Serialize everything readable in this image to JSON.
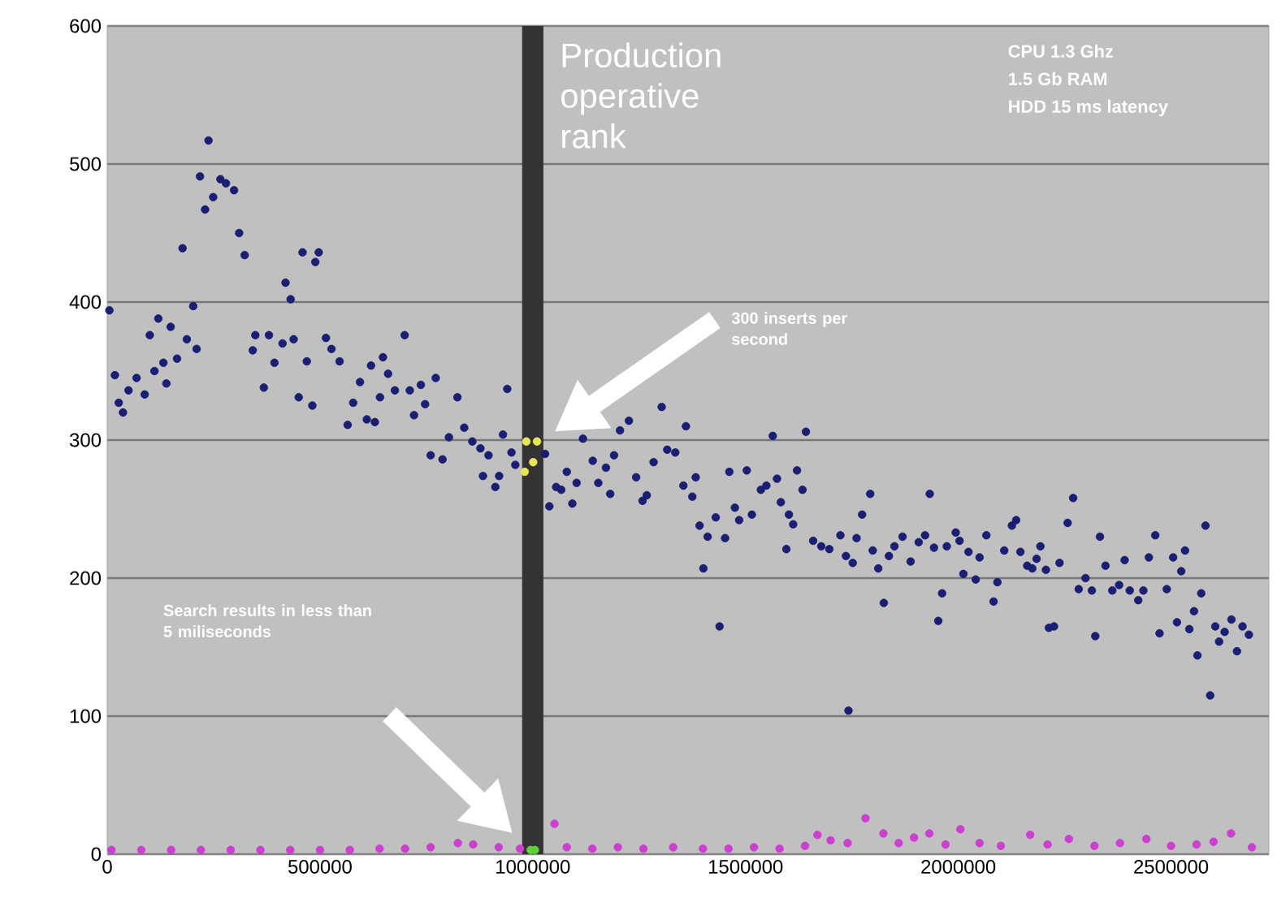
{
  "chart_data": {
    "type": "scatter",
    "marker": "circle",
    "grid": "y",
    "xlim": [
      0,
      2730000
    ],
    "ylim": [
      0,
      600
    ],
    "xticks": [
      0,
      500000,
      1000000,
      1500000,
      2000000,
      2500000
    ],
    "yticks": [
      0,
      100,
      200,
      300,
      400,
      500,
      600
    ],
    "bands": [
      {
        "axis": "x",
        "from": 975000,
        "to": 1025000,
        "label": "Production operative rank",
        "color": "#333333"
      }
    ],
    "annotations": [
      "CPU 1.3 Ghz",
      "1.5 Gb RAM",
      "HDD 15 ms latency",
      "300 inserts per second",
      "Search results in less than 5 miliseconds"
    ],
    "series": [
      {
        "color": "#1b1f73",
        "x": [
          5000,
          18000,
          27000,
          37000,
          50000,
          69000,
          88000,
          100000,
          111000,
          120000,
          132000,
          139000,
          149000,
          164000,
          177000,
          187000,
          202000,
          210000,
          218000,
          230000,
          238000,
          249000,
          266000,
          279000,
          298000,
          310000,
          323000,
          348000,
          342000,
          368000,
          380000,
          393000,
          412000,
          419000,
          431000,
          438000,
          450000,
          459000,
          469000,
          482000,
          489000,
          497000,
          514000,
          527000,
          546000,
          565000,
          578000,
          594000,
          610000,
          620000,
          629000,
          641000,
          648000,
          660000,
          676000,
          699000,
          711000,
          721000,
          737000,
          747000,
          772000,
          760000,
          788000,
          803000,
          823000,
          839000,
          858000,
          877000,
          883000,
          896000,
          912000,
          921000,
          930000,
          940000,
          950000,
          959000,
          1029000,
          1039000,
          1055000,
          1067000,
          1080000,
          1093000,
          1103000,
          1118000,
          1141000,
          1154000,
          1172000,
          1182000,
          1191000,
          1205000,
          1226000,
          1243000,
          1258000,
          1268000,
          1284000,
          1303000,
          1316000,
          1335000,
          1354000,
          1360000,
          1375000,
          1383000,
          1392000,
          1411000,
          1401000,
          1430000,
          1439000,
          1452000,
          1462000,
          1475000,
          1485000,
          1503000,
          1515000,
          1536000,
          1549000,
          1564000,
          1574000,
          1583000,
          1596000,
          1602000,
          1612000,
          1621000,
          1634000,
          1642000,
          1659000,
          1678000,
          1697000,
          1723000,
          1736000,
          1742000,
          1761000,
          1774000,
          1793000,
          1799000,
          1812000,
          1825000,
          1752000,
          1837000,
          1850000,
          1869000,
          1888000,
          1907000,
          1922000,
          1933000,
          1943000,
          1953000,
          1962000,
          1973000,
          1994000,
          2003000,
          2012000,
          2024000,
          2041000,
          2050000,
          2066000,
          2083000,
          2092000,
          2108000,
          2126000,
          2136000,
          2146000,
          2162000,
          2174000,
          2184000,
          2193000,
          2206000,
          2213000,
          2225000,
          2238000,
          2257000,
          2270000,
          2283000,
          2299000,
          2314000,
          2322000,
          2333000,
          2346000,
          2362000,
          2378000,
          2391000,
          2403000,
          2423000,
          2435000,
          2448000,
          2463000,
          2473000,
          2490000,
          2505000,
          2514000,
          2524000,
          2533000,
          2543000,
          2554000,
          2562000,
          2571000,
          2581000,
          2592000,
          2604000,
          2613000,
          2626000,
          2642000,
          2655000,
          2668000,
          2683000
        ],
        "values": [
          394,
          347,
          327,
          320,
          336,
          345,
          333,
          376,
          350,
          388,
          356,
          341,
          382,
          359,
          439,
          373,
          397,
          366,
          491,
          467,
          517,
          476,
          489,
          486,
          481,
          450,
          434,
          376,
          365,
          338,
          376,
          356,
          370,
          414,
          402,
          373,
          331,
          436,
          357,
          325,
          429,
          436,
          374,
          366,
          357,
          311,
          327,
          342,
          315,
          354,
          313,
          331,
          360,
          348,
          336,
          376,
          336,
          318,
          340,
          326,
          345,
          289,
          286,
          302,
          331,
          309,
          299,
          294,
          274,
          289,
          266,
          274,
          304,
          337,
          291,
          282,
          290,
          252,
          266,
          264,
          277,
          254,
          269,
          301,
          285,
          269,
          280,
          261,
          289,
          307,
          314,
          273,
          256,
          260,
          284,
          324,
          293,
          291,
          267,
          310,
          259,
          273,
          238,
          230,
          207,
          244,
          165,
          229,
          277,
          251,
          242,
          278,
          246,
          264,
          267,
          303,
          272,
          255,
          221,
          246,
          239,
          278,
          264,
          306,
          227,
          223,
          221,
          231,
          216,
          104,
          229,
          246,
          261,
          220,
          207,
          182,
          211,
          216,
          223,
          230,
          212,
          226,
          231,
          261,
          222,
          169,
          189,
          223,
          233,
          227,
          203,
          219,
          199,
          215,
          231,
          183,
          197,
          220,
          238,
          242,
          219,
          209,
          207,
          214,
          223,
          206,
          164,
          165,
          211,
          240,
          258,
          192,
          200,
          191,
          158,
          230,
          209,
          191,
          195,
          213,
          191,
          184,
          191,
          215,
          231,
          160,
          192,
          215,
          168,
          205,
          220,
          163,
          176,
          144,
          189,
          238,
          115,
          165,
          154,
          161,
          170,
          147,
          165,
          159
        ]
      },
      {
        "color": "#e6e65a",
        "x": [
          985000,
          1010000,
          1001000,
          981000
        ],
        "values": [
          299,
          299,
          284,
          277
        ]
      },
      {
        "color": "#cc3fd0",
        "x": [
          10000,
          80000,
          150000,
          220000,
          290000,
          360000,
          430000,
          500000,
          570000,
          640000,
          700000,
          760000,
          824000,
          860000,
          920000,
          970000,
          1051000,
          1080000,
          1140000,
          1200000,
          1260000,
          1330000,
          1400000,
          1460000,
          1520000,
          1580000,
          1640000,
          1669000,
          1700000,
          1740000,
          1782000,
          1824000,
          1860000,
          1896000,
          1932000,
          1970000,
          2005000,
          2050000,
          2100000,
          2169000,
          2210000,
          2260000,
          2320000,
          2380000,
          2442000,
          2500000,
          2560000,
          2600000,
          2641000,
          2690000
        ],
        "values": [
          3,
          3,
          3,
          3,
          3,
          3,
          3,
          3,
          3,
          4,
          4,
          5,
          8,
          7,
          5,
          4,
          22,
          5,
          4,
          5,
          4,
          5,
          4,
          4,
          5,
          4,
          6,
          14,
          10,
          8,
          26,
          15,
          8,
          12,
          15,
          7,
          18,
          8,
          6,
          14,
          7,
          11,
          6,
          8,
          11,
          6,
          7,
          9,
          15,
          5
        ]
      },
      {
        "color": "#5fcf3a",
        "x": [
          995000,
          1005000
        ],
        "values": [
          3,
          3
        ]
      }
    ]
  }
}
